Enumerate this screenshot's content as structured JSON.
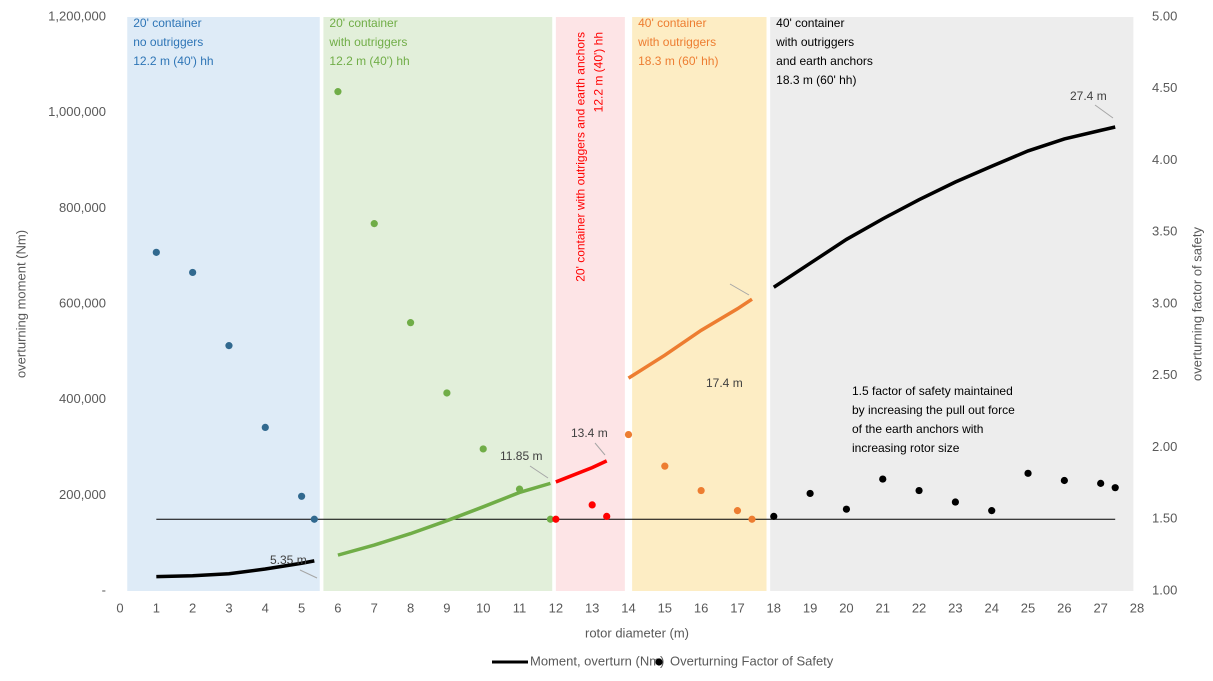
{
  "chart_data": {
    "type": "combo",
    "x_label": "rotor diameter (m)",
    "y_label": "overturning moment (Nm)",
    "y2_label": "overturning factor of safety",
    "xlim": [
      0,
      28
    ],
    "xticks": [
      0,
      1,
      2,
      3,
      4,
      5,
      6,
      7,
      8,
      9,
      10,
      11,
      12,
      13,
      14,
      15,
      16,
      17,
      18,
      19,
      20,
      21,
      22,
      23,
      24,
      25,
      26,
      27,
      28
    ],
    "ylim": [
      0,
      1200000
    ],
    "yticks": [
      {
        "value": 0,
        "label": "-"
      },
      {
        "value": 200000,
        "label": "200,000"
      },
      {
        "value": 400000,
        "label": "400,000"
      },
      {
        "value": 600000,
        "label": "600,000"
      },
      {
        "value": 800000,
        "label": "800,000"
      },
      {
        "value": 1000000,
        "label": "1,000,000"
      },
      {
        "value": 1200000,
        "label": "1,200,000"
      }
    ],
    "y2lim": [
      1,
      5
    ],
    "y2ticks": [
      {
        "value": 1,
        "label": "1.00"
      },
      {
        "value": 1.5,
        "label": "1.50"
      },
      {
        "value": 2,
        "label": "2.00"
      },
      {
        "value": 2.5,
        "label": "2.50"
      },
      {
        "value": 3,
        "label": "3.00"
      },
      {
        "value": 3.5,
        "label": "3.50"
      },
      {
        "value": 4,
        "label": "4.00"
      },
      {
        "value": 4.5,
        "label": "4.50"
      },
      {
        "value": 5,
        "label": "5.00"
      }
    ],
    "regions": [
      {
        "xlim": [
          0.2,
          5.5
        ],
        "color": "#deebf7",
        "text_color": "#2e75b6",
        "lines": [
          "20' container",
          "no outriggers",
          "12.2 m (40') hh"
        ]
      },
      {
        "xlim": [
          5.6,
          11.9
        ],
        "color": "#e2efda",
        "text_color": "#70ad47",
        "lines": [
          "20' container",
          "with outriggers",
          "12.2 m (40') hh"
        ]
      },
      {
        "xlim": [
          12.0,
          13.9
        ],
        "color": "#fde4e6",
        "text_color": "#ff0000",
        "vertical": true,
        "lines": [
          "20' container with outriggers and earth anchors",
          "12.2 m (40') hh"
        ]
      },
      {
        "xlim": [
          14.1,
          17.8
        ],
        "color": "#fdedc4",
        "text_color": "#ed7d31",
        "lines": [
          "40' container",
          "with outriggers",
          "18.3 m (60' hh)"
        ]
      },
      {
        "xlim": [
          17.9,
          27.9
        ],
        "color": "#ededed",
        "text_color": "#000000",
        "lines": [
          "40' container",
          "with outriggers",
          "and earth anchors",
          "18.3 m (60' hh)"
        ]
      }
    ],
    "series": [
      {
        "name": "Moment, overturn (Nm)",
        "color": "#000000",
        "segments": [
          {
            "color": "#000000",
            "x": [
              1,
              2,
              3,
              4,
              5,
              5.35
            ],
            "values": [
              30000,
              32000,
              36000,
              46000,
              58000,
              63000
            ]
          },
          {
            "color": "#70ad47",
            "x": [
              6,
              7,
              8,
              9,
              10,
              11,
              11.85
            ],
            "values": [
              75000,
              96000,
              120000,
              147000,
              176000,
              206000,
              225000
            ]
          },
          {
            "color": "#ff0000",
            "x": [
              12,
              13,
              13.4
            ],
            "values": [
              228000,
              258000,
              272000
            ]
          },
          {
            "color": "#ed7d31",
            "x": [
              14,
              15,
              16,
              17,
              17.4
            ],
            "values": [
              445000,
              493000,
              545000,
              590000,
              610000
            ]
          },
          {
            "color": "#000000",
            "x": [
              18,
              19,
              20,
              21,
              22,
              23,
              24,
              25,
              26,
              27,
              27.4
            ],
            "values": [
              635000,
              685000,
              735000,
              778000,
              818000,
              855000,
              888000,
              920000,
              945000,
              963000,
              970000
            ]
          }
        ]
      },
      {
        "name": "Overturning Factor of Safety",
        "color": "#000000",
        "axis": "y2",
        "segments": [
          {
            "color": "#31698f",
            "x": [
              1,
              2,
              3,
              4,
              5,
              5.35
            ],
            "values": [
              3.36,
              3.22,
              2.71,
              2.14,
              1.66,
              1.5
            ]
          },
          {
            "color": "#70ad47",
            "x": [
              6,
              7,
              8,
              9,
              10,
              11,
              11.85
            ],
            "values": [
              4.48,
              3.56,
              2.87,
              2.38,
              1.99,
              1.71,
              1.5
            ]
          },
          {
            "color": "#ff0000",
            "x": [
              12,
              13,
              13.4
            ],
            "values": [
              1.5,
              1.6,
              1.52
            ]
          },
          {
            "color": "#ed7d31",
            "x": [
              14,
              15,
              16,
              17,
              17.4
            ],
            "values": [
              2.09,
              1.87,
              1.7,
              1.56,
              1.5
            ]
          },
          {
            "color": "#000000",
            "x": [
              18,
              19,
              20,
              21,
              22,
              23,
              24,
              25,
              26,
              27,
              27.4
            ],
            "values": [
              1.52,
              1.68,
              1.57,
              1.78,
              1.7,
              1.62,
              1.56,
              1.82,
              1.77,
              1.75,
              1.72
            ]
          }
        ]
      }
    ],
    "reference_line": {
      "value": 1.5,
      "axis": "y2",
      "xlim": [
        1,
        27.4
      ]
    },
    "annotations": [
      "5.35 m",
      "11.85 m",
      "13.4 m",
      "17.4 m",
      "27.4 m"
    ],
    "note": [
      "1.5 factor of safety maintained",
      "by increasing the pull out force",
      "of the earth anchors with",
      "increasing rotor size"
    ]
  }
}
